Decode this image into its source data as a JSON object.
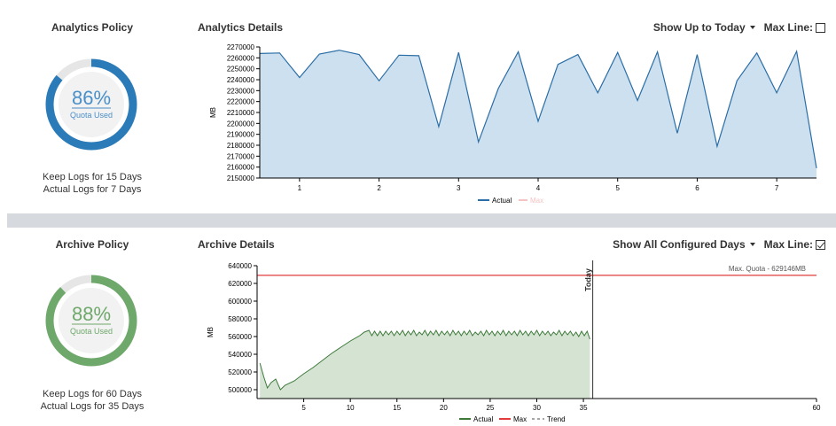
{
  "analytics": {
    "policy_title": "Analytics Policy",
    "details_title": "Analytics Details",
    "percent": "86%",
    "percent_value": 86,
    "quota_label": "Quota Used",
    "keep_logs": "Keep Logs for 15 Days",
    "actual_logs": "Actual Logs for 7 Days",
    "range_label": "Show Up to Today",
    "max_line_label": "Max Line:",
    "max_line_checked": false,
    "ring_color": "#2b7bb9",
    "ring_text_color": "#4a8fc8"
  },
  "archive": {
    "policy_title": "Archive Policy",
    "details_title": "Archive Details",
    "percent": "88%",
    "percent_value": 88,
    "quota_label": "Quota Used",
    "keep_logs": "Keep Logs for 60 Days",
    "actual_logs": "Actual Logs for 35 Days",
    "range_label": "Show All Configured Days",
    "max_line_label": "Max Line:",
    "max_line_checked": true,
    "ring_color": "#6fa86b",
    "ring_text_color": "#6fa86b"
  },
  "chart_data": [
    {
      "type": "area",
      "ylabel": "MB",
      "xlim": [
        0.5,
        7.5
      ],
      "ylim": [
        2150000,
        2270000
      ],
      "xticks": [
        1,
        2,
        3,
        4,
        5,
        6,
        7
      ],
      "yticks": [
        2150000,
        2160000,
        2170000,
        2180000,
        2190000,
        2200000,
        2210000,
        2220000,
        2230000,
        2240000,
        2250000,
        2260000,
        2270000
      ],
      "legend": [
        "Actual",
        "Max"
      ],
      "colors": {
        "actual_line": "#2b6ea6",
        "actual_fill": "#cde0ef",
        "max": "#f4c4c4"
      },
      "x": [
        0.5,
        0.75,
        1.0,
        1.25,
        1.5,
        1.75,
        2.0,
        2.25,
        2.5,
        2.75,
        3.0,
        3.25,
        3.5,
        3.75,
        4.0,
        4.25,
        4.5,
        4.75,
        5.0,
        5.25,
        5.5,
        5.75,
        6.0,
        6.25,
        6.5,
        6.75,
        7.0,
        7.25,
        7.5
      ],
      "values": [
        2264000,
        2264500,
        2242000,
        2263500,
        2267000,
        2263000,
        2239000,
        2262500,
        2262000,
        2197000,
        2265000,
        2183000,
        2232000,
        2265500,
        2202000,
        2254000,
        2263000,
        2228000,
        2265000,
        2221000,
        2265500,
        2191000,
        2263000,
        2179000,
        2239000,
        2264500,
        2228000,
        2266000,
        2159000
      ]
    },
    {
      "type": "area",
      "ylabel": "MB",
      "xlim": [
        0,
        60
      ],
      "ylim": [
        490000,
        640000
      ],
      "xticks": [
        5,
        10,
        15,
        20,
        25,
        30,
        35,
        60
      ],
      "yticks": [
        500000,
        520000,
        540000,
        560000,
        580000,
        600000,
        620000,
        640000
      ],
      "legend": [
        "Actual",
        "Max",
        "Trend"
      ],
      "colors": {
        "actual_line": "#3d7a3a",
        "actual_fill": "#d5e3d3",
        "max": "#e23b3b",
        "trend": "#888888"
      },
      "max_value": 629146,
      "max_label": "Max. Quota - 629146MB",
      "today_x": 36,
      "today_label": "Today",
      "x": [
        0.3,
        0.7,
        1.1,
        1.5,
        2.0,
        2.5,
        3.0,
        4.0,
        5.0,
        6.0,
        7.0,
        8.0,
        9.0,
        10.0,
        11.0,
        11.5,
        12.0,
        12.3,
        12.6,
        12.9,
        13.2,
        13.5,
        13.8,
        14.1,
        14.4,
        14.7,
        15.0,
        15.3,
        15.6,
        15.9,
        16.2,
        16.5,
        16.8,
        17.1,
        17.4,
        17.7,
        18.0,
        18.3,
        18.6,
        18.9,
        19.2,
        19.5,
        19.8,
        20.1,
        20.4,
        20.7,
        21.0,
        21.3,
        21.6,
        21.9,
        22.2,
        22.5,
        22.8,
        23.1,
        23.4,
        23.7,
        24.0,
        24.3,
        24.6,
        24.9,
        25.2,
        25.5,
        25.8,
        26.1,
        26.4,
        26.7,
        27.0,
        27.3,
        27.6,
        27.9,
        28.2,
        28.5,
        28.8,
        29.1,
        29.4,
        29.7,
        30.0,
        30.3,
        30.6,
        30.9,
        31.2,
        31.5,
        31.8,
        32.1,
        32.4,
        32.7,
        33.0,
        33.3,
        33.6,
        33.9,
        34.2,
        34.5,
        34.8,
        35.1,
        35.4,
        35.7
      ],
      "values": [
        530000,
        515000,
        502000,
        508000,
        512000,
        500000,
        505000,
        510000,
        518000,
        525000,
        533000,
        541000,
        548000,
        555000,
        561000,
        565000,
        567000,
        561000,
        566000,
        561000,
        566000,
        561000,
        566000,
        562000,
        566000,
        561000,
        566000,
        562000,
        567000,
        561000,
        566000,
        562000,
        567000,
        561000,
        565000,
        562000,
        567000,
        561000,
        566000,
        562000,
        567000,
        561000,
        566000,
        562000,
        566000,
        561000,
        567000,
        562000,
        566000,
        561000,
        566000,
        562000,
        567000,
        561000,
        565000,
        562000,
        566000,
        561000,
        567000,
        562000,
        566000,
        561000,
        566000,
        562000,
        567000,
        561000,
        566000,
        562000,
        566000,
        561000,
        567000,
        562000,
        566000,
        561000,
        566000,
        562000,
        567000,
        561000,
        566000,
        562000,
        566000,
        561000,
        565000,
        562000,
        567000,
        561000,
        566000,
        562000,
        566000,
        561000,
        565000,
        560000,
        566000,
        561000,
        566000,
        557000
      ]
    }
  ]
}
